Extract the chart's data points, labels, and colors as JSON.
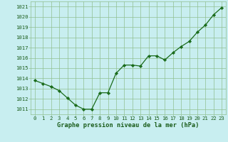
{
  "x": [
    0,
    1,
    2,
    3,
    4,
    5,
    6,
    7,
    8,
    9,
    10,
    11,
    12,
    13,
    14,
    15,
    16,
    17,
    18,
    19,
    20,
    21,
    22,
    23
  ],
  "y": [
    1013.8,
    1013.5,
    1013.2,
    1012.8,
    1012.1,
    1011.4,
    1011.0,
    1011.0,
    1012.6,
    1012.6,
    1014.5,
    1015.3,
    1015.3,
    1015.2,
    1016.2,
    1016.2,
    1015.8,
    1016.5,
    1017.1,
    1017.6,
    1018.5,
    1019.2,
    1020.2,
    1020.9
  ],
  "line_color": "#1a6b1a",
  "marker": "D",
  "marker_size": 2.2,
  "bg_color": "#c8eef0",
  "grid_color": "#90c090",
  "title": "Graphe pression niveau de la mer (hPa)",
  "title_color": "#1a5c1a",
  "xlabel_ticks": [
    0,
    1,
    2,
    3,
    4,
    5,
    6,
    7,
    8,
    9,
    10,
    11,
    12,
    13,
    14,
    15,
    16,
    17,
    18,
    19,
    20,
    21,
    22,
    23
  ],
  "yticks": [
    1011,
    1012,
    1013,
    1014,
    1015,
    1016,
    1017,
    1018,
    1019,
    1020,
    1021
  ],
  "ylim": [
    1010.5,
    1021.5
  ],
  "xlim": [
    -0.5,
    23.5
  ],
  "tick_color": "#1a5c1a",
  "tick_fontsize": 5.2,
  "title_fontsize": 6.2
}
